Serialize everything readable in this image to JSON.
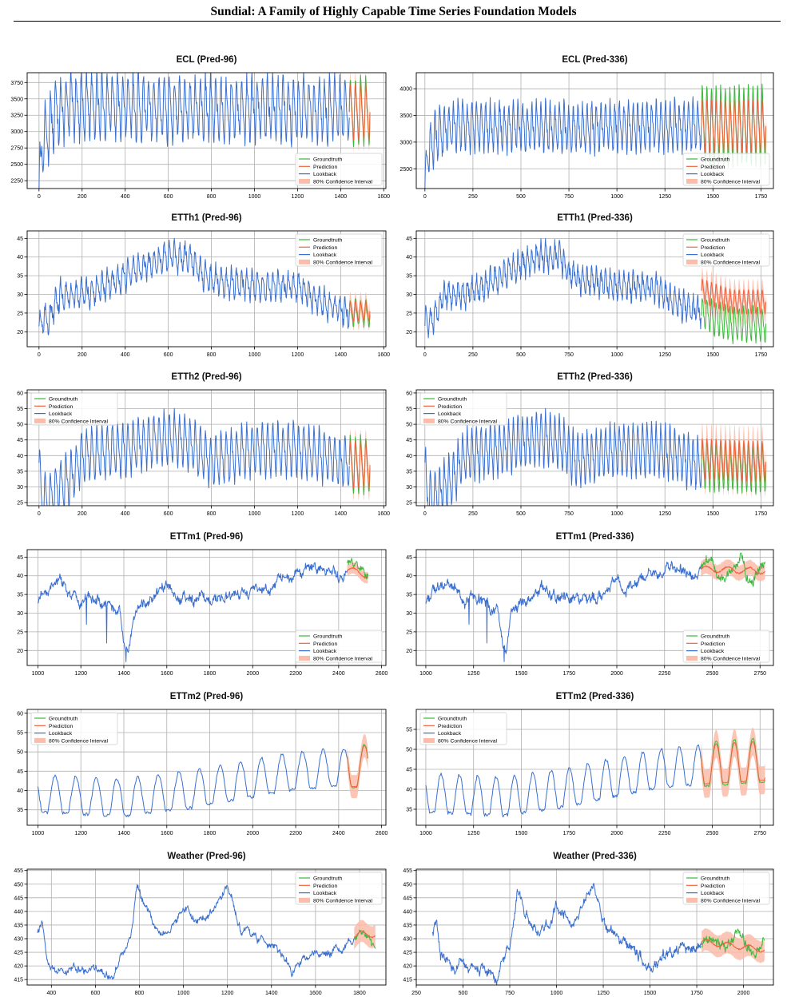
{
  "page": {
    "title": "Sundial: A Family of Highly Capable Time Series Foundation Models"
  },
  "colors": {
    "groundtruth": "#3cb83c",
    "prediction": "#f0623c",
    "lookback": "#3a6fd0",
    "interval": "#fbbcaa"
  },
  "legend_labels": [
    "Groundtruth",
    "Prediction",
    "Lookback",
    "80% Confidence Interval"
  ],
  "chart_data": [
    {
      "id": "ecl-96",
      "type": "line",
      "title": "ECL (Pred-96)",
      "xlim": [
        -55,
        1610
      ],
      "ylim": [
        2130,
        3900
      ],
      "xticks": [
        0,
        200,
        400,
        600,
        800,
        1000,
        1200,
        1400,
        1600
      ],
      "yticks": [
        2250,
        2500,
        2750,
        3000,
        3250,
        3500,
        3750
      ],
      "grid": true,
      "legend_position": "lower right",
      "lookback_end": 1440,
      "end": 1536,
      "style": "daily",
      "anchors": [
        [
          0,
          2150
        ],
        [
          15,
          2800
        ],
        [
          40,
          3000
        ],
        [
          80,
          3300
        ],
        [
          150,
          3400
        ],
        [
          300,
          3400
        ],
        [
          600,
          3350
        ],
        [
          900,
          3350
        ],
        [
          1200,
          3350
        ],
        [
          1440,
          3300
        ]
      ],
      "amplitude": 400,
      "noise": 120,
      "period": 24,
      "truth_amp": 450,
      "pred_amp": 400,
      "pred_offset": 0,
      "band_width": 180
    },
    {
      "id": "ecl-336",
      "type": "line",
      "title": "ECL (Pred-336)",
      "xlim": [
        -45,
        1815
      ],
      "ylim": [
        2130,
        4300
      ],
      "xticks": [
        0,
        250,
        500,
        750,
        1000,
        1250,
        1500,
        1750
      ],
      "yticks": [
        2500,
        3000,
        3500,
        4000
      ],
      "grid": true,
      "legend_position": "lower right",
      "lookback_end": 1440,
      "end": 1776,
      "style": "daily",
      "anchors": [
        [
          0,
          2150
        ],
        [
          15,
          2800
        ],
        [
          40,
          3000
        ],
        [
          80,
          3200
        ],
        [
          150,
          3300
        ],
        [
          300,
          3300
        ],
        [
          700,
          3250
        ],
        [
          1100,
          3300
        ],
        [
          1440,
          3300
        ]
      ],
      "amplitude": 380,
      "noise": 120,
      "period": 24,
      "truth_amp": 650,
      "pred_amp": 450,
      "pred_offset": 0,
      "band_width": 220
    },
    {
      "id": "etth1-96",
      "type": "line",
      "title": "ETTh1 (Pred-96)",
      "xlim": [
        -55,
        1610
      ],
      "ylim": [
        16,
        47
      ],
      "xticks": [
        0,
        200,
        400,
        600,
        800,
        1000,
        1200,
        1400,
        1600
      ],
      "yticks": [
        20,
        25,
        30,
        35,
        40,
        45
      ],
      "grid": true,
      "legend_position": "upper right",
      "lookback_end": 1440,
      "end": 1536,
      "style": "daily",
      "anchors": [
        [
          0,
          22
        ],
        [
          50,
          24
        ],
        [
          100,
          30
        ],
        [
          200,
          30
        ],
        [
          300,
          32
        ],
        [
          400,
          35
        ],
        [
          500,
          38
        ],
        [
          600,
          40
        ],
        [
          700,
          40
        ],
        [
          750,
          36
        ],
        [
          800,
          34
        ],
        [
          1000,
          32
        ],
        [
          1200,
          32
        ],
        [
          1300,
          28
        ],
        [
          1440,
          25
        ]
      ],
      "amplitude": 3,
      "noise": 1.5,
      "period": 24,
      "truth_amp": 3,
      "pred_amp": 2.5,
      "pred_offset": 0.5,
      "band_width": 2.5
    },
    {
      "id": "etth1-336",
      "type": "line",
      "title": "ETTh1 (Pred-336)",
      "xlim": [
        -45,
        1815
      ],
      "ylim": [
        16,
        47
      ],
      "xticks": [
        0,
        250,
        500,
        750,
        1000,
        1250,
        1500,
        1750
      ],
      "yticks": [
        20,
        25,
        30,
        35,
        40,
        45
      ],
      "grid": true,
      "legend_position": "upper right",
      "lookback_end": 1440,
      "end": 1776,
      "style": "daily",
      "anchors": [
        [
          0,
          22
        ],
        [
          50,
          24
        ],
        [
          100,
          30
        ],
        [
          200,
          30
        ],
        [
          300,
          32
        ],
        [
          400,
          35
        ],
        [
          500,
          38
        ],
        [
          600,
          40
        ],
        [
          700,
          40
        ],
        [
          750,
          36
        ],
        [
          800,
          34
        ],
        [
          1000,
          32
        ],
        [
          1200,
          32
        ],
        [
          1300,
          28
        ],
        [
          1440,
          25
        ],
        [
          1600,
          22
        ],
        [
          1776,
          22
        ]
      ],
      "amplitude": 3,
      "noise": 1.5,
      "period": 24,
      "truth_amp": 4,
      "pred_amp": 3,
      "pred_offset": 6,
      "band_width": 3
    },
    {
      "id": "etth2-96",
      "type": "line",
      "title": "ETTh2 (Pred-96)",
      "xlim": [
        -55,
        1610
      ],
      "ylim": [
        24,
        61
      ],
      "xticks": [
        0,
        200,
        400,
        600,
        800,
        1000,
        1200,
        1400,
        1600
      ],
      "yticks": [
        25,
        30,
        35,
        40,
        45,
        50,
        55,
        60
      ],
      "grid": true,
      "legend_position": "upper left",
      "lookback_end": 1440,
      "end": 1536,
      "style": "daily",
      "anchors": [
        [
          0,
          38
        ],
        [
          10,
          27
        ],
        [
          40,
          26
        ],
        [
          100,
          30
        ],
        [
          150,
          33
        ],
        [
          200,
          40
        ],
        [
          400,
          42
        ],
        [
          500,
          44
        ],
        [
          600,
          46
        ],
        [
          700,
          44
        ],
        [
          800,
          38
        ],
        [
          1000,
          42
        ],
        [
          1200,
          42
        ],
        [
          1300,
          40
        ],
        [
          1440,
          37
        ]
      ],
      "amplitude": 7,
      "noise": 1.5,
      "period": 24,
      "truth_amp": 8,
      "pred_amp": 7,
      "pred_offset": 0,
      "band_width": 4
    },
    {
      "id": "etth2-336",
      "type": "line",
      "title": "ETTh2 (Pred-336)",
      "xlim": [
        -45,
        1815
      ],
      "ylim": [
        24,
        61
      ],
      "xticks": [
        0,
        250,
        500,
        750,
        1000,
        1250,
        1500,
        1750
      ],
      "yticks": [
        25,
        30,
        35,
        40,
        45,
        50,
        55,
        60
      ],
      "grid": true,
      "legend_position": "upper left",
      "lookback_end": 1440,
      "end": 1776,
      "style": "daily",
      "anchors": [
        [
          0,
          38
        ],
        [
          10,
          27
        ],
        [
          40,
          26
        ],
        [
          100,
          30
        ],
        [
          150,
          33
        ],
        [
          200,
          40
        ],
        [
          400,
          42
        ],
        [
          500,
          44
        ],
        [
          600,
          46
        ],
        [
          700,
          44
        ],
        [
          800,
          38
        ],
        [
          1000,
          42
        ],
        [
          1200,
          42
        ],
        [
          1300,
          40
        ],
        [
          1440,
          37
        ],
        [
          1776,
          36
        ]
      ],
      "amplitude": 7,
      "noise": 1.5,
      "period": 24,
      "truth_amp": 7,
      "pred_amp": 6,
      "pred_offset": 2,
      "band_width": 5
    },
    {
      "id": "ettm1-96",
      "type": "line",
      "title": "ETTm1 (Pred-96)",
      "xlim": [
        950,
        2620
      ],
      "ylim": [
        16,
        47
      ],
      "xticks": [
        1000,
        1200,
        1400,
        1600,
        1800,
        2000,
        2200,
        2400,
        2600
      ],
      "yticks": [
        20,
        25,
        30,
        35,
        40,
        45
      ],
      "grid": true,
      "legend_position": "lower right",
      "lookback_end": 2440,
      "end": 2536,
      "style": "walk",
      "anchors": [
        [
          1000,
          33
        ],
        [
          1100,
          38
        ],
        [
          1200,
          34
        ],
        [
          1300,
          33
        ],
        [
          1380,
          31
        ],
        [
          1400,
          22
        ],
        [
          1420,
          20
        ],
        [
          1450,
          30
        ],
        [
          1600,
          36
        ],
        [
          1700,
          34
        ],
        [
          1800,
          33
        ],
        [
          1900,
          35
        ],
        [
          2000,
          36
        ],
        [
          2100,
          38
        ],
        [
          2200,
          40
        ],
        [
          2300,
          41
        ],
        [
          2440,
          40
        ]
      ],
      "amplitude": 0,
      "noise": 1.2,
      "period": 24,
      "truth_amp": 2,
      "pred_amp": 1,
      "pred_offset": -1,
      "band_width": 1.5,
      "spikes": [
        [
          1225,
          27
        ],
        [
          1320,
          22
        ],
        [
          1410,
          17
        ]
      ]
    },
    {
      "id": "ettm1-336",
      "type": "line",
      "title": "ETTm1 (Pred-336)",
      "xlim": [
        950,
        2820
      ],
      "ylim": [
        16,
        47
      ],
      "xticks": [
        1000,
        1250,
        1500,
        1750,
        2000,
        2250,
        2500,
        2750
      ],
      "yticks": [
        20,
        25,
        30,
        35,
        40,
        45
      ],
      "grid": true,
      "legend_position": "lower right",
      "lookback_end": 2440,
      "end": 2776,
      "style": "walk",
      "anchors": [
        [
          1000,
          33
        ],
        [
          1100,
          38
        ],
        [
          1200,
          34
        ],
        [
          1300,
          33
        ],
        [
          1380,
          31
        ],
        [
          1400,
          22
        ],
        [
          1420,
          20
        ],
        [
          1450,
          30
        ],
        [
          1600,
          36
        ],
        [
          1700,
          34
        ],
        [
          1800,
          33
        ],
        [
          1900,
          35
        ],
        [
          2000,
          36
        ],
        [
          2100,
          38
        ],
        [
          2200,
          40
        ],
        [
          2300,
          41
        ],
        [
          2440,
          40
        ],
        [
          2776,
          39
        ]
      ],
      "amplitude": 0,
      "noise": 1.2,
      "period": 24,
      "truth_amp": 2.5,
      "pred_amp": 0.8,
      "pred_offset": -0.5,
      "band_width": 2,
      "spikes": [
        [
          1225,
          27
        ],
        [
          1320,
          22
        ],
        [
          1410,
          17
        ]
      ]
    },
    {
      "id": "ettm2-96",
      "type": "line",
      "title": "ETTm2 (Pred-96)",
      "xlim": [
        950,
        2620
      ],
      "ylim": [
        31,
        61
      ],
      "xticks": [
        1000,
        1200,
        1400,
        1600,
        1800,
        2000,
        2200,
        2400,
        2600
      ],
      "yticks": [
        35,
        40,
        45,
        50,
        55,
        60
      ],
      "grid": true,
      "legend_position": "upper left",
      "lookback_end": 2440,
      "end": 2536,
      "style": "smooth",
      "anchors": [
        [
          1000,
          38
        ],
        [
          1400,
          37
        ],
        [
          1700,
          39
        ],
        [
          2000,
          42
        ],
        [
          2200,
          44
        ],
        [
          2440,
          45
        ]
      ],
      "amplitude": 6,
      "noise": 0.4,
      "period": 96,
      "truth_amp": 7,
      "pred_amp": 7,
      "pred_offset": 0,
      "band_width": 3
    },
    {
      "id": "ettm2-336",
      "type": "line",
      "title": "ETTm2 (Pred-336)",
      "xlim": [
        950,
        2820
      ],
      "ylim": [
        31,
        60
      ],
      "xticks": [
        1000,
        1250,
        1500,
        1750,
        2000,
        2250,
        2500,
        2750
      ],
      "yticks": [
        35,
        40,
        45,
        50,
        55
      ],
      "grid": true,
      "legend_position": "upper left",
      "lookback_end": 2440,
      "end": 2776,
      "style": "smooth",
      "anchors": [
        [
          1000,
          38
        ],
        [
          1400,
          37
        ],
        [
          1700,
          39
        ],
        [
          2000,
          42
        ],
        [
          2200,
          44
        ],
        [
          2440,
          45
        ],
        [
          2776,
          46
        ]
      ],
      "amplitude": 6,
      "noise": 0.4,
      "period": 96,
      "truth_amp": 7,
      "pred_amp": 6.5,
      "pred_offset": 0,
      "band_width": 3.5
    },
    {
      "id": "weather-96",
      "type": "line",
      "title": "Weather (Pred-96)",
      "xlim": [
        290,
        1920
      ],
      "ylim": [
        413,
        455.5
      ],
      "xticks": [
        400,
        600,
        800,
        1000,
        1200,
        1400,
        1600,
        1800
      ],
      "yticks": [
        415,
        420,
        425,
        430,
        435,
        440,
        445,
        450,
        455
      ],
      "grid": true,
      "legend_position": "upper right",
      "lookback_end": 1776,
      "end": 1872,
      "style": "walk",
      "anchors": [
        [
          336,
          432
        ],
        [
          360,
          435
        ],
        [
          380,
          422
        ],
        [
          450,
          419
        ],
        [
          600,
          419
        ],
        [
          680,
          416
        ],
        [
          760,
          430
        ],
        [
          790,
          450
        ],
        [
          830,
          440
        ],
        [
          900,
          432
        ],
        [
          1000,
          440
        ],
        [
          1100,
          436
        ],
        [
          1200,
          449
        ],
        [
          1260,
          434
        ],
        [
          1400,
          428
        ],
        [
          1500,
          420
        ],
        [
          1600,
          424
        ],
        [
          1700,
          426
        ],
        [
          1776,
          430
        ]
      ],
      "amplitude": 0,
      "noise": 1.2,
      "period": 24,
      "truth_amp": 3,
      "pred_amp": 2,
      "pred_offset": 3,
      "band_width": 4
    },
    {
      "id": "weather-336",
      "type": "line",
      "title": "Weather (Pred-336)",
      "xlim": [
        250,
        2160
      ],
      "ylim": [
        413,
        455.5
      ],
      "xticks": [
        250,
        500,
        750,
        1000,
        1250,
        1500,
        1750,
        2000
      ],
      "yticks": [
        415,
        420,
        425,
        430,
        435,
        440,
        445,
        450,
        455
      ],
      "grid": true,
      "legend_position": "upper right",
      "lookback_end": 1776,
      "end": 2112,
      "style": "walk",
      "anchors": [
        [
          336,
          432
        ],
        [
          360,
          435
        ],
        [
          380,
          422
        ],
        [
          450,
          419
        ],
        [
          600,
          419
        ],
        [
          680,
          416
        ],
        [
          760,
          430
        ],
        [
          790,
          450
        ],
        [
          830,
          440
        ],
        [
          900,
          432
        ],
        [
          1000,
          440
        ],
        [
          1100,
          436
        ],
        [
          1200,
          449
        ],
        [
          1260,
          434
        ],
        [
          1400,
          428
        ],
        [
          1500,
          420
        ],
        [
          1600,
          424
        ],
        [
          1700,
          426
        ],
        [
          1776,
          430
        ],
        [
          1900,
          428
        ],
        [
          2112,
          426
        ]
      ],
      "amplitude": 0,
      "noise": 1.5,
      "period": 24,
      "truth_amp": 3,
      "pred_amp": 1,
      "pred_offset": -3,
      "band_width": 4
    }
  ]
}
